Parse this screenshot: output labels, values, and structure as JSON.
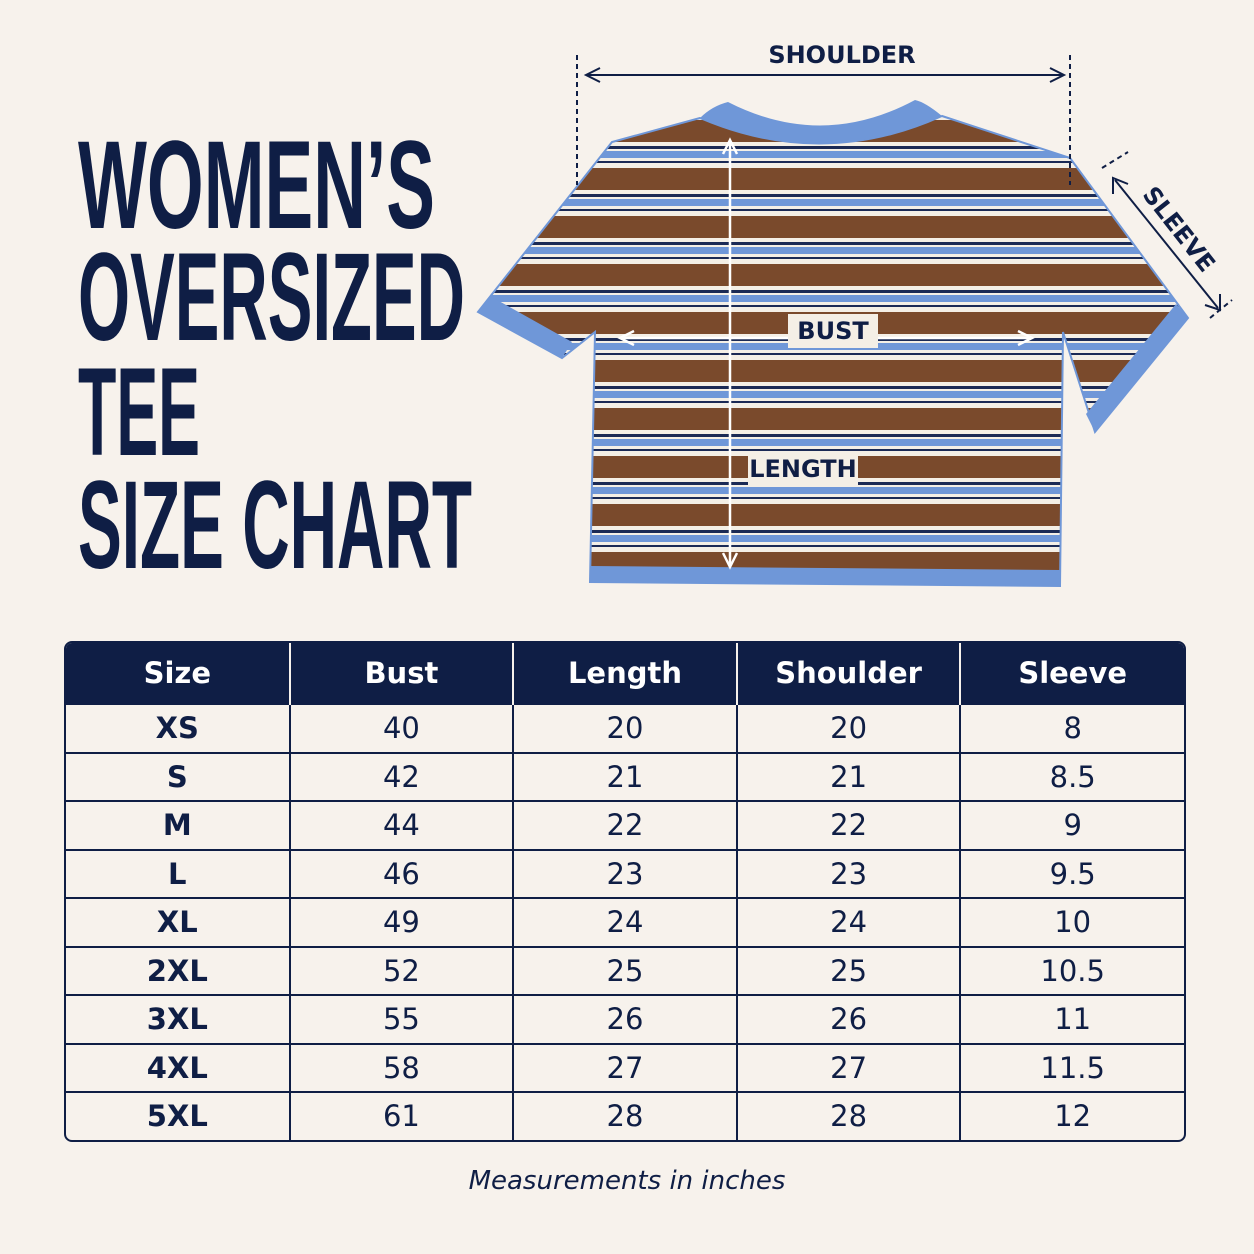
{
  "title": {
    "lines": [
      "WOMEN’S",
      "OVERSIZED",
      "TEE",
      "SIZE CHART"
    ]
  },
  "diagram": {
    "shoulder": "SHOULDER",
    "sleeve": "SLEEVE",
    "bust": "BUST",
    "length": "LENGTH"
  },
  "table": {
    "header": [
      "Size",
      "Bust",
      "Length",
      "Shoulder",
      "Sleeve"
    ],
    "rows": [
      [
        "XS",
        40,
        20,
        20,
        8
      ],
      [
        "S",
        42,
        21,
        21,
        8.5
      ],
      [
        "M",
        44,
        22,
        22,
        9
      ],
      [
        "L",
        46,
        23,
        23,
        9.5
      ],
      [
        "XL",
        49,
        24,
        24,
        10
      ],
      [
        "2XL",
        52,
        25,
        25,
        10.5
      ],
      [
        "3XL",
        55,
        26,
        26,
        11
      ],
      [
        "4XL",
        58,
        27,
        27,
        11.5
      ],
      [
        "5XL",
        61,
        28,
        28,
        12
      ]
    ]
  },
  "footnote": "Measurements in inches"
}
